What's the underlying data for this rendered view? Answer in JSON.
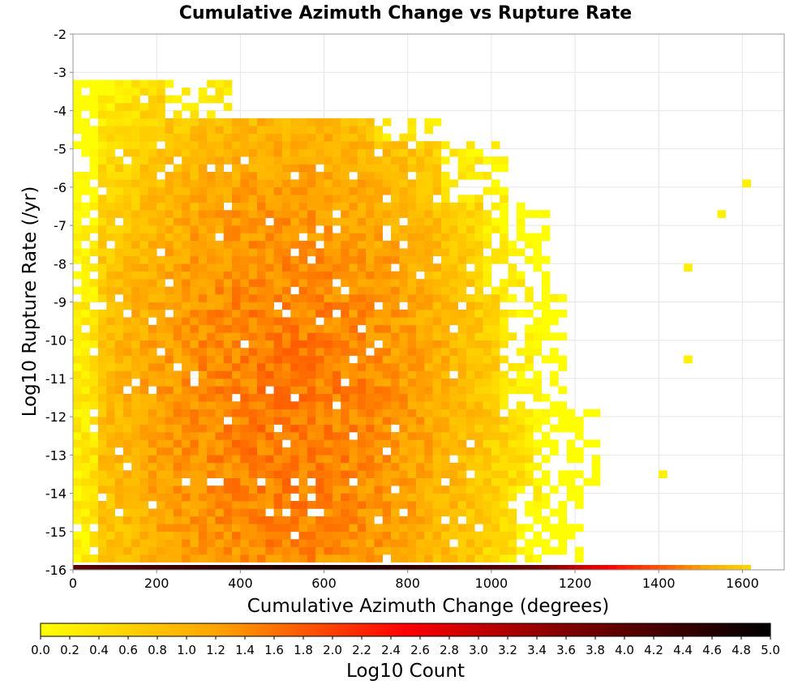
{
  "chart_data": {
    "type": "heatmap",
    "title": "Cumulative Azimuth Change vs Rupture Rate",
    "xlabel": "Cumulative Azimuth Change (degrees)",
    "ylabel": "Log10 Rupture Rate (/yr)",
    "xlim": [
      0,
      1700
    ],
    "ylim": [
      -16,
      -2
    ],
    "x_ticks": [
      "0",
      "200",
      "400",
      "600",
      "800",
      "1000",
      "1200",
      "1400",
      "1600"
    ],
    "y_ticks": [
      "-2",
      "-3",
      "-4",
      "-5",
      "-6",
      "-7",
      "-8",
      "-9",
      "-10",
      "-11",
      "-12",
      "-13",
      "-14",
      "-15",
      "-16"
    ],
    "x_tick_values": [
      0,
      200,
      400,
      600,
      800,
      1000,
      1200,
      1400,
      1600
    ],
    "y_tick_values": [
      -2,
      -3,
      -4,
      -5,
      -6,
      -7,
      -8,
      -9,
      -10,
      -11,
      -12,
      -13,
      -14,
      -15,
      -16
    ],
    "grid": true,
    "bin_width_x": 20,
    "bin_width_y": 0.2,
    "cells": [
      {
        "x": 0,
        "y": -16,
        "v": 4.0
      },
      {
        "x": 200,
        "y": -16,
        "v": 4.3
      },
      {
        "x": 400,
        "y": -16,
        "v": 4.6
      },
      {
        "x": 600,
        "y": -16,
        "v": 4.7
      },
      {
        "x": 800,
        "y": -16,
        "v": 4.5
      },
      {
        "x": 1000,
        "y": -16,
        "v": 4.1
      },
      {
        "x": 1100,
        "y": -16,
        "v": 3.8
      },
      {
        "x": 1200,
        "y": -16,
        "v": 3.0
      },
      {
        "x": 1260,
        "y": -16,
        "v": 2.6
      },
      {
        "x": 1300,
        "y": -16,
        "v": 2.3
      },
      {
        "x": 1400,
        "y": -16,
        "v": 1.8
      },
      {
        "x": 1500,
        "y": -16,
        "v": 1.2
      },
      {
        "x": 1600,
        "y": -16,
        "v": 0.6
      },
      {
        "x": 400,
        "y": -14,
        "v": 1.6
      },
      {
        "x": 500,
        "y": -14,
        "v": 1.7
      },
      {
        "x": 600,
        "y": -14,
        "v": 1.5
      },
      {
        "x": 400,
        "y": -6,
        "v": 1.4
      },
      {
        "x": 600,
        "y": -12,
        "v": 1.5
      },
      {
        "x": 1600,
        "y": -6,
        "v": 0.2
      },
      {
        "x": 1540,
        "y": -6.8,
        "v": 0.2
      },
      {
        "x": 1460,
        "y": -8.2,
        "v": 0.2
      },
      {
        "x": 1460,
        "y": -10.6,
        "v": 0.2
      },
      {
        "x": 1400,
        "y": -13.6,
        "v": 0.2
      }
    ]
  },
  "colorbar": {
    "label": "Log10 Count",
    "range": [
      0,
      5
    ],
    "ticks": [
      "0.0",
      "0.2",
      "0.4",
      "0.6",
      "0.8",
      "1.0",
      "1.2",
      "1.4",
      "1.6",
      "1.8",
      "2.0",
      "2.2",
      "2.4",
      "2.6",
      "2.8",
      "3.0",
      "3.2",
      "3.4",
      "3.6",
      "3.8",
      "4.0",
      "4.2",
      "4.4",
      "4.6",
      "4.8",
      "5.0"
    ],
    "colors": [
      "#ffff00",
      "#ffa500",
      "#ff0000",
      "#800000",
      "#000000"
    ]
  }
}
